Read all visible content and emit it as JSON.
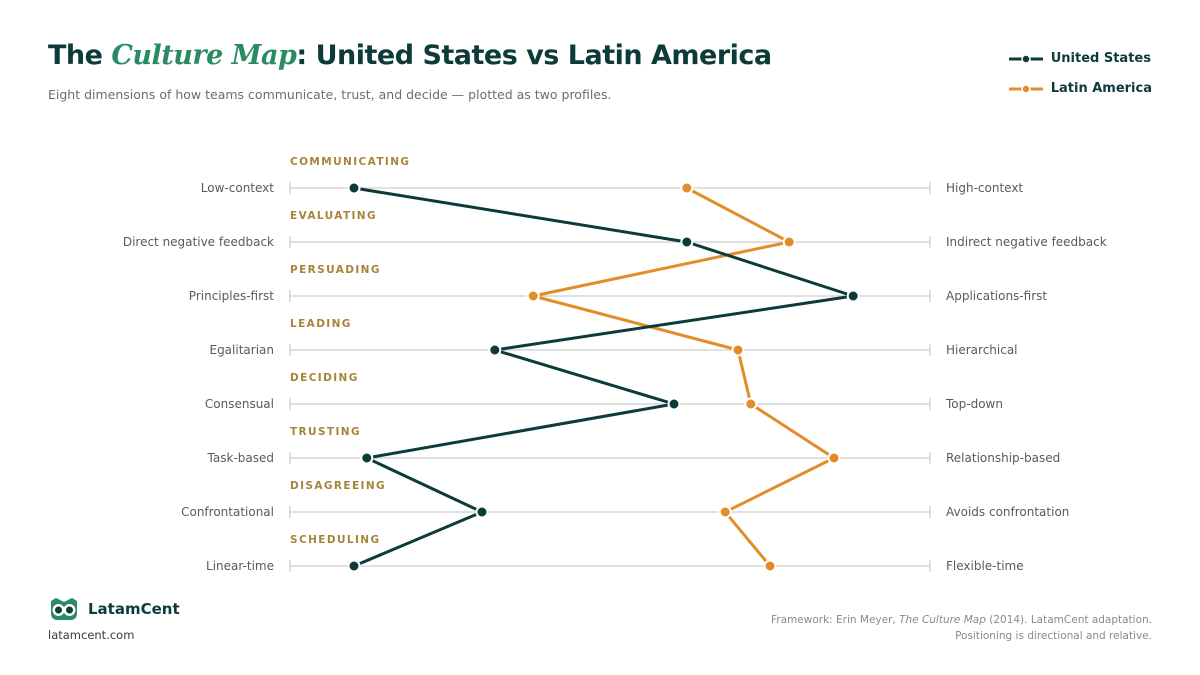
{
  "header": {
    "title_prefix": "The ",
    "title_accent": "Culture Map",
    "title_suffix": ": United States vs Latin America",
    "subtitle": "Eight dimensions of how teams communicate, trust, and decide — plotted as two profiles."
  },
  "colors": {
    "us": "#0d3b3a",
    "latam": "#e08d2a",
    "category": "#a8843a",
    "axis": "#d6d6d6",
    "label": "#5a5a5a"
  },
  "chart_data": {
    "type": "line",
    "orientation": "horizontal-scales",
    "scale": [
      0,
      100
    ],
    "legend_position": "top-right",
    "dimensions": [
      {
        "category": "COMMUNICATING",
        "left": "Low-context",
        "right": "High-context"
      },
      {
        "category": "EVALUATING",
        "left": "Direct negative feedback",
        "right": "Indirect negative feedback"
      },
      {
        "category": "PERSUADING",
        "left": "Principles-first",
        "right": "Applications-first"
      },
      {
        "category": "LEADING",
        "left": "Egalitarian",
        "right": "Hierarchical"
      },
      {
        "category": "DECIDING",
        "left": "Consensual",
        "right": "Top-down"
      },
      {
        "category": "TRUSTING",
        "left": "Task-based",
        "right": "Relationship-based"
      },
      {
        "category": "DISAGREEING",
        "left": "Confrontational",
        "right": "Avoids confrontation"
      },
      {
        "category": "SCHEDULING",
        "left": "Linear-time",
        "right": "Flexible-time"
      }
    ],
    "series": [
      {
        "name": "United States",
        "color": "#0d3b3a",
        "values": [
          10,
          62,
          88,
          32,
          60,
          12,
          30,
          10
        ]
      },
      {
        "name": "Latin America",
        "color": "#e08d2a",
        "values": [
          62,
          78,
          38,
          70,
          72,
          85,
          68,
          75
        ]
      }
    ]
  },
  "footer": {
    "brand_name": "LatamCent",
    "brand_url": "latamcent.com",
    "source_prefix": "Framework: Erin Meyer, ",
    "source_book": "The Culture Map",
    "source_suffix": " (2014). LatamCent adaptation. Positioning is directional and relative."
  }
}
